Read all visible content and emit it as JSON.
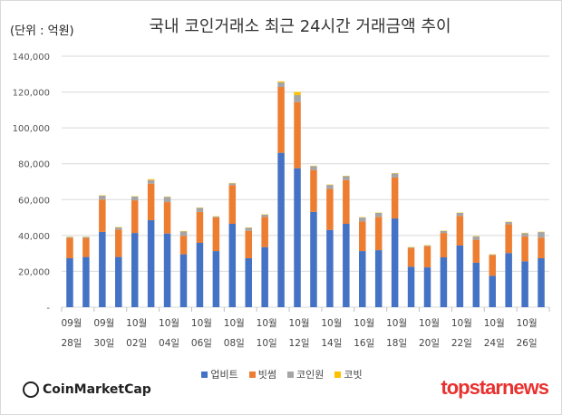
{
  "header": {
    "unit": "(단위 : 억원)",
    "title": "국내 코인거래소 최근 24시간 거래금액 추이"
  },
  "logos": {
    "left": "CoinMarketCap",
    "right": "topstarnews"
  },
  "chart_data": {
    "type": "bar",
    "stacked": true,
    "title": "국내 코인거래소 최근 24시간 거래금액 추이",
    "ylabel": "(단위 : 억원)",
    "ylim": [
      0,
      140000
    ],
    "yticks": [
      0,
      20000,
      40000,
      60000,
      80000,
      100000,
      120000,
      140000
    ],
    "ytick_labels": [
      "-",
      "20,000",
      "40,000",
      "60,000",
      "80,000",
      "100,000",
      "120,000",
      "140,000"
    ],
    "grid": true,
    "legend_position": "bottom",
    "categories": [
      "09/28",
      "09/29",
      "09/30",
      "10/01",
      "10/02",
      "10/03",
      "10/04",
      "10/05",
      "10/06",
      "10/07",
      "10/08",
      "10/09",
      "10/10",
      "10/11",
      "10/12",
      "10/13",
      "10/14",
      "10/15",
      "10/16",
      "10/17",
      "10/18",
      "10/19",
      "10/20",
      "10/21",
      "10/22",
      "10/23",
      "10/24",
      "10/25",
      "10/26",
      "10/27"
    ],
    "xtick_labels": [
      [
        "09월",
        "28일"
      ],
      [
        "09월",
        "30일"
      ],
      [
        "10월",
        "02일"
      ],
      [
        "10월",
        "04일"
      ],
      [
        "10월",
        "06일"
      ],
      [
        "10월",
        "08일"
      ],
      [
        "10월",
        "10일"
      ],
      [
        "10월",
        "12일"
      ],
      [
        "10월",
        "14일"
      ],
      [
        "10월",
        "16일"
      ],
      [
        "10월",
        "18일"
      ],
      [
        "10월",
        "20일"
      ],
      [
        "10월",
        "22일"
      ],
      [
        "10월",
        "24일"
      ],
      [
        "10월",
        "26일"
      ]
    ],
    "series": [
      {
        "name": "업비트",
        "color": "#4472c4",
        "values": [
          27300,
          28000,
          42000,
          28000,
          41400,
          48500,
          41100,
          29500,
          35900,
          31300,
          46500,
          27300,
          33500,
          86100,
          77500,
          53200,
          43100,
          46500,
          31300,
          31800,
          49500,
          22600,
          22200,
          27800,
          34400,
          24800,
          17500,
          30200,
          25600,
          27300
        ]
      },
      {
        "name": "빗썸",
        "color": "#ed7d31",
        "values": [
          11300,
          10400,
          18000,
          15300,
          18200,
          20400,
          17500,
          10300,
          17200,
          18700,
          21600,
          15300,
          16900,
          36700,
          36900,
          23300,
          22900,
          24400,
          16500,
          18600,
          22800,
          10400,
          11800,
          13600,
          16500,
          12800,
          11500,
          16000,
          13800,
          11500
        ]
      },
      {
        "name": "코인원",
        "color": "#a5a5a5",
        "values": [
          500,
          700,
          2200,
          1200,
          2100,
          2000,
          2900,
          2500,
          2300,
          500,
          1000,
          1700,
          1200,
          2600,
          3900,
          2200,
          2200,
          2200,
          2200,
          2200,
          2300,
          400,
          400,
          1100,
          1700,
          1800,
          300,
          1300,
          1900,
          3100
        ]
      },
      {
        "name": "코빗",
        "color": "#ffc000",
        "values": [
          200,
          200,
          200,
          200,
          200,
          500,
          200,
          200,
          200,
          200,
          200,
          200,
          200,
          600,
          1700,
          200,
          200,
          200,
          200,
          200,
          200,
          200,
          200,
          200,
          200,
          200,
          200,
          200,
          200,
          200
        ]
      }
    ]
  }
}
